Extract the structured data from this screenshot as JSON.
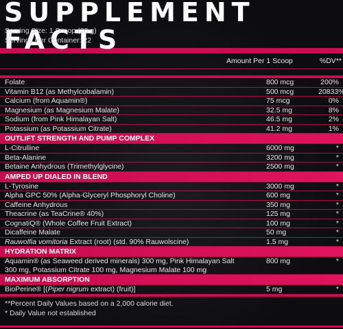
{
  "title": "SUPPLEMENT FACTS",
  "serving_size": "Serving Size: 1 Scoop (20 g)",
  "servings_per_container": "Servings Per Container: 22",
  "header": {
    "amount": "Amount Per 1 Scoop",
    "dv": "%DV**"
  },
  "vitamins": [
    {
      "name": "Folate",
      "amount": "800 mcg",
      "dv": "200%"
    },
    {
      "name": "Vitamin B12 (as Methylcobalamin)",
      "amount": "500 mcg",
      "dv": "20833%"
    },
    {
      "name": "Calcium (from Aquamin®)",
      "amount": "75 mcg",
      "dv": "0%"
    },
    {
      "name": "Magnesium (as Magnesium Malate)",
      "amount": "32.5 mg",
      "dv": "8%"
    },
    {
      "name": "Sodium (from Pink Himalayan Salt)",
      "amount": "46.5 mg",
      "dv": "2%"
    },
    {
      "name": "Potassium (as Potassium Citrate)",
      "amount": "41.2 mg",
      "dv": "1%"
    }
  ],
  "sections": [
    {
      "title": "OUTLIFT STRENGTH AND PUMP COMPLEX",
      "rows": [
        {
          "name": "L-Citrulline",
          "amount": "6000 mg",
          "dv": "*"
        },
        {
          "name": "Beta-Alanine",
          "amount": "3200 mg",
          "dv": "*"
        },
        {
          "name": "Betaine Anhydrous (Trimethylglycine)",
          "amount": "2500 mg",
          "dv": "*"
        }
      ]
    },
    {
      "title": "AMPED UP DIALED IN BLEND",
      "rows": [
        {
          "name": "L-Tyrosine",
          "amount": "3000 mg",
          "dv": "*"
        },
        {
          "name": "Alpha GPC 50% (Alpha-Glyceryl Phosphoryl Choline)",
          "amount": "600 mg",
          "dv": "*"
        },
        {
          "name": "Caffeine Anhydrous",
          "amount": "350 mg",
          "dv": "*"
        },
        {
          "name": "Theacrine (as TeaCrine® 40%)",
          "amount": "125 mg",
          "dv": "*"
        },
        {
          "name": "CognatiQ® (Whole Coffee Fruit Extract)",
          "amount": "100 mg",
          "dv": "*"
        },
        {
          "name": "Dicaffeine Malate",
          "amount": "50 mg",
          "dv": "*"
        }
      ]
    }
  ],
  "rauwolfia": {
    "italic": "Rauwolfia vomitoria",
    "rest": " Extract (root) (std. 90% Rauwolscine)",
    "amount": "1.5 mg",
    "dv": "*"
  },
  "hydration": {
    "title": "HYDRATION MATRIX",
    "line1": "Aquamin® (as Seaweed derived minerals) 300 mg, Pink Himalayan Salt",
    "line2": "300 mg, Potassium Citrate 100 mg, Magnesium Malate 100 mg",
    "amount": "800 mg",
    "dv": "*"
  },
  "absorption": {
    "title": "MAXIMUM ABSORPTION",
    "pre": "BioPerine® [(",
    "italic": "Piper nigrum",
    "post": " extract) (fruit)]",
    "amount": "5 mg",
    "dv": "*"
  },
  "footnotes": [
    "**Percent Daily Values based on a 2,000 calorie diet.",
    "* Daily Value not established"
  ],
  "colors": {
    "accent": "#c80e4e",
    "background": "#0d0d0f",
    "text": "#e6e6e6"
  }
}
